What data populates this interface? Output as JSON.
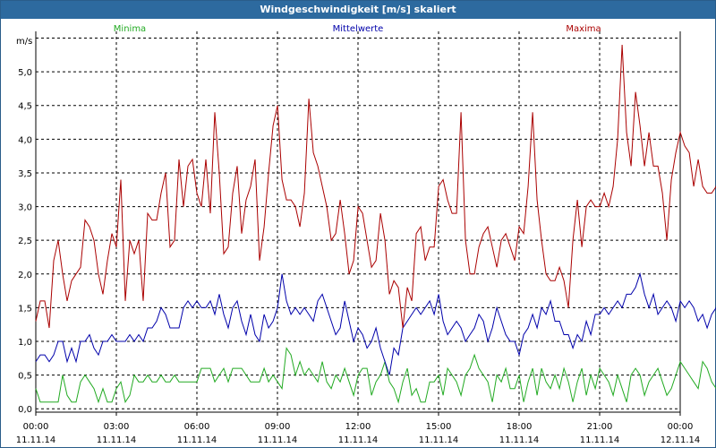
{
  "window": {
    "title": "Windgeschwindigkeit [m/s] skaliert"
  },
  "chart_data": {
    "type": "line",
    "title": "Windgeschwindigkeit [m/s] skaliert",
    "ylabel": "m/s",
    "xlabel": "",
    "ylim": [
      -0.05,
      5.6
    ],
    "xlim": [
      0,
      24
    ],
    "grid": true,
    "legend_placement": "top",
    "y_ticks": [
      {
        "value": 0.0,
        "label": "0,0"
      },
      {
        "value": 0.5,
        "label": "0,5"
      },
      {
        "value": 1.0,
        "label": "1,0"
      },
      {
        "value": 1.5,
        "label": "1,5"
      },
      {
        "value": 2.0,
        "label": "2,0"
      },
      {
        "value": 2.5,
        "label": "2,5"
      },
      {
        "value": 3.0,
        "label": "3,0"
      },
      {
        "value": 3.5,
        "label": "3,5"
      },
      {
        "value": 4.0,
        "label": "4,0"
      },
      {
        "value": 4.5,
        "label": "4,5"
      },
      {
        "value": 5.0,
        "label": "5,0"
      }
    ],
    "x_ticks": [
      {
        "value": 0,
        "time": "00:00",
        "date": "11.11.14"
      },
      {
        "value": 3,
        "time": "03:00",
        "date": "11.11.14"
      },
      {
        "value": 6,
        "time": "06:00",
        "date": "11.11.14"
      },
      {
        "value": 9,
        "time": "09:00",
        "date": "11.11.14"
      },
      {
        "value": 12,
        "time": "12:00",
        "date": "11.11.14"
      },
      {
        "value": 15,
        "time": "15:00",
        "date": "11.11.14"
      },
      {
        "value": 18,
        "time": "18:00",
        "date": "11.11.14"
      },
      {
        "value": 21,
        "time": "21:00",
        "date": "11.11.14"
      },
      {
        "value": 24,
        "time": "00:00",
        "date": "12.11.14"
      }
    ],
    "x_unit": "hours",
    "x_step": 0.1667,
    "series": [
      {
        "name": "Minima",
        "color": "#22aa22",
        "values": [
          0.3,
          0.1,
          0.1,
          0.1,
          0.1,
          0.1,
          0.5,
          0.2,
          0.1,
          0.1,
          0.4,
          0.5,
          0.4,
          0.3,
          0.1,
          0.3,
          0.1,
          0.1,
          0.3,
          0.4,
          0.1,
          0.2,
          0.5,
          0.4,
          0.4,
          0.5,
          0.4,
          0.4,
          0.5,
          0.4,
          0.4,
          0.5,
          0.4,
          0.4,
          0.4,
          0.4,
          0.4,
          0.6,
          0.6,
          0.6,
          0.4,
          0.5,
          0.6,
          0.4,
          0.6,
          0.6,
          0.6,
          0.5,
          0.4,
          0.4,
          0.4,
          0.6,
          0.4,
          0.5,
          0.4,
          0.3,
          0.9,
          0.8,
          0.5,
          0.7,
          0.5,
          0.6,
          0.5,
          0.4,
          0.7,
          0.4,
          0.3,
          0.5,
          0.4,
          0.6,
          0.4,
          0.2,
          0.5,
          0.6,
          0.6,
          0.2,
          0.4,
          0.5,
          0.7,
          0.4,
          0.3,
          0.1,
          0.4,
          0.6,
          0.2,
          0.3,
          0.1,
          0.1,
          0.4,
          0.4,
          0.5,
          0.2,
          0.6,
          0.5,
          0.4,
          0.2,
          0.5,
          0.6,
          0.8,
          0.6,
          0.5,
          0.4,
          0.1,
          0.5,
          0.4,
          0.6,
          0.3,
          0.3,
          0.5,
          0.1,
          0.4,
          0.6,
          0.2,
          0.6,
          0.4,
          0.3,
          0.5,
          0.3,
          0.6,
          0.4,
          0.1,
          0.4,
          0.6,
          0.2,
          0.5,
          0.3,
          0.6,
          0.5,
          0.4,
          0.2,
          0.5,
          0.3,
          0.1,
          0.5,
          0.6,
          0.5,
          0.2,
          0.4,
          0.5,
          0.6,
          0.4,
          0.2,
          0.3,
          0.5,
          0.7,
          0.6,
          0.5,
          0.4,
          0.3,
          0.7,
          0.6,
          0.4,
          0.3,
          0.6,
          0.4,
          0.7,
          0.4,
          0.6,
          0.5,
          0.5,
          0.3,
          0.6,
          0.4,
          0.3,
          0.8,
          0.6,
          0.8,
          0.3,
          0.1
        ]
      },
      {
        "name": "Mittelwerte",
        "color": "#0000aa",
        "values": [
          0.7,
          0.8,
          0.8,
          0.7,
          0.8,
          1.0,
          1.0,
          0.7,
          0.9,
          0.7,
          1.0,
          1.0,
          1.1,
          0.9,
          0.8,
          1.0,
          1.0,
          1.1,
          1.0,
          1.0,
          1.0,
          1.1,
          1.0,
          1.1,
          1.0,
          1.2,
          1.2,
          1.3,
          1.5,
          1.4,
          1.2,
          1.2,
          1.2,
          1.5,
          1.6,
          1.5,
          1.6,
          1.5,
          1.5,
          1.6,
          1.4,
          1.7,
          1.4,
          1.2,
          1.5,
          1.6,
          1.3,
          1.1,
          1.4,
          1.1,
          1.0,
          1.4,
          1.2,
          1.3,
          1.5,
          2.0,
          1.6,
          1.4,
          1.5,
          1.4,
          1.5,
          1.4,
          1.3,
          1.6,
          1.7,
          1.5,
          1.3,
          1.1,
          1.2,
          1.6,
          1.3,
          1.0,
          1.2,
          1.1,
          0.9,
          1.0,
          1.2,
          0.9,
          0.7,
          0.5,
          0.9,
          0.8,
          1.2,
          1.3,
          1.4,
          1.5,
          1.4,
          1.5,
          1.6,
          1.4,
          1.7,
          1.3,
          1.1,
          1.2,
          1.3,
          1.2,
          1.0,
          1.1,
          1.2,
          1.4,
          1.3,
          1.0,
          1.2,
          1.5,
          1.3,
          1.1,
          1.0,
          1.0,
          0.8,
          1.1,
          1.2,
          1.4,
          1.2,
          1.5,
          1.4,
          1.6,
          1.3,
          1.3,
          1.1,
          1.1,
          0.9,
          1.1,
          1.0,
          1.3,
          1.1,
          1.4,
          1.4,
          1.5,
          1.4,
          1.5,
          1.6,
          1.5,
          1.7,
          1.7,
          1.8,
          2.0,
          1.7,
          1.5,
          1.7,
          1.4,
          1.5,
          1.6,
          1.5,
          1.3,
          1.6,
          1.5,
          1.6,
          1.5,
          1.3,
          1.4,
          1.2,
          1.4,
          1.5,
          1.7,
          1.6,
          1.5,
          1.6,
          1.4,
          1.5,
          1.6,
          1.5,
          1.6,
          1.5,
          1.8,
          1.7,
          1.5,
          1.7,
          1.1
        ]
      },
      {
        "name": "Maxima",
        "color": "#aa0000",
        "values": [
          1.3,
          1.6,
          1.6,
          1.2,
          2.2,
          2.5,
          2.0,
          1.6,
          1.9,
          2.0,
          2.1,
          2.8,
          2.7,
          2.5,
          2.0,
          1.7,
          2.2,
          2.6,
          2.4,
          3.4,
          1.6,
          2.5,
          2.3,
          2.5,
          1.6,
          2.9,
          2.8,
          2.8,
          3.2,
          3.5,
          2.4,
          2.5,
          3.7,
          3.0,
          3.6,
          3.7,
          3.2,
          3.0,
          3.7,
          2.9,
          4.4,
          3.5,
          2.3,
          2.4,
          3.2,
          3.6,
          2.6,
          3.1,
          3.3,
          3.7,
          2.2,
          2.7,
          3.5,
          4.2,
          4.5,
          3.4,
          3.1,
          3.1,
          3.0,
          2.7,
          3.2,
          4.6,
          3.8,
          3.6,
          3.3,
          3.0,
          2.5,
          2.6,
          3.1,
          2.6,
          2.0,
          2.2,
          3.0,
          2.9,
          2.5,
          2.1,
          2.2,
          2.9,
          2.5,
          1.7,
          1.9,
          1.8,
          1.2,
          1.8,
          1.6,
          2.6,
          2.7,
          2.2,
          2.4,
          2.4,
          3.3,
          3.4,
          3.1,
          2.9,
          2.9,
          4.4,
          2.5,
          2.0,
          2.0,
          2.4,
          2.6,
          2.7,
          2.4,
          2.1,
          2.5,
          2.6,
          2.4,
          2.2,
          2.7,
          2.6,
          3.3,
          4.4,
          3.1,
          2.5,
          2.0,
          1.9,
          1.9,
          2.1,
          1.9,
          1.5,
          2.5,
          3.1,
          2.4,
          3.0,
          3.1,
          3.0,
          3.0,
          3.2,
          3.0,
          3.3,
          4.0,
          5.4,
          4.1,
          3.6,
          4.7,
          4.2,
          3.6,
          4.1,
          3.6,
          3.6,
          3.2,
          2.5,
          3.4,
          3.8,
          4.1,
          3.9,
          3.8,
          3.3,
          3.7,
          3.3,
          3.2,
          3.2,
          3.3,
          3.7,
          3.4,
          3.1,
          3.8,
          3.7,
          3.2,
          2.5,
          3.5,
          3.8,
          3.6,
          3.1,
          4.1,
          3.5,
          2.5
        ]
      }
    ]
  }
}
